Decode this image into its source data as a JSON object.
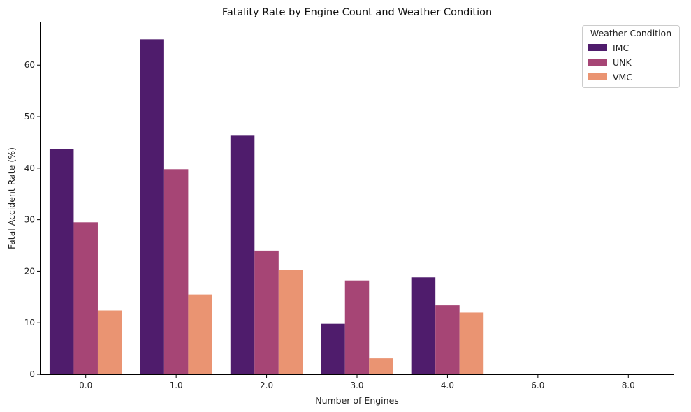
{
  "chart_data": {
    "type": "bar",
    "title": "Fatality Rate by Engine Count and Weather Condition",
    "xlabel": "Number of Engines",
    "ylabel": "Fatal Accident Rate (%)",
    "categories": [
      "0.0",
      "1.0",
      "2.0",
      "3.0",
      "4.0",
      "6.0",
      "8.0"
    ],
    "ylim": [
      0,
      68.3
    ],
    "yticks": [
      0,
      10,
      20,
      30,
      40,
      50,
      60
    ],
    "legend": {
      "title": "Weather Condition",
      "position": "top-right"
    },
    "series": [
      {
        "name": "IMC",
        "color": "#4f1c6c",
        "values": [
          43.7,
          65.0,
          46.3,
          9.8,
          18.8,
          0,
          0
        ]
      },
      {
        "name": "UNK",
        "color": "#a64575",
        "values": [
          29.5,
          39.8,
          24.0,
          18.2,
          13.4,
          0,
          0
        ]
      },
      {
        "name": "VMC",
        "color": "#ea9472",
        "values": [
          12.4,
          15.5,
          20.2,
          3.1,
          12.0,
          0,
          0
        ]
      }
    ]
  }
}
